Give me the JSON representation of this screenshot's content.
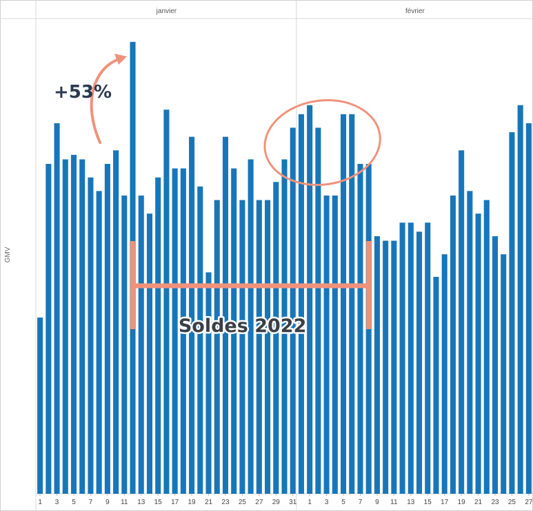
{
  "chart_data": {
    "type": "bar",
    "ylabel": "GMV",
    "months": [
      {
        "name": "janvier",
        "start_index": 0,
        "end_index": 30
      },
      {
        "name": "février",
        "start_index": 31,
        "end_index": 58
      }
    ],
    "categories": [
      1,
      2,
      3,
      4,
      5,
      6,
      7,
      8,
      9,
      10,
      11,
      12,
      13,
      14,
      15,
      16,
      17,
      18,
      19,
      20,
      21,
      22,
      23,
      24,
      25,
      26,
      27,
      28,
      29,
      30,
      31,
      1,
      2,
      3,
      4,
      5,
      6,
      7,
      8,
      9,
      10,
      11,
      12,
      13,
      14,
      15,
      16,
      17,
      18,
      19,
      20,
      21,
      22,
      23,
      24,
      25,
      26,
      27,
      28
    ],
    "tick_labels": [
      "1",
      "3",
      "5",
      "7",
      "9",
      "11",
      "13",
      "15",
      "17",
      "19",
      "21",
      "23",
      "25",
      "27",
      "29",
      "31",
      "1",
      "3",
      "5",
      "7",
      "9",
      "11",
      "13",
      "15",
      "17",
      "19",
      "21",
      "23",
      "25",
      "27"
    ],
    "values": [
      39,
      73,
      82,
      74,
      75,
      74,
      70,
      67,
      73,
      76,
      66,
      100,
      66,
      62,
      70,
      85,
      72,
      72,
      79,
      68,
      49,
      65,
      79,
      72,
      65,
      74,
      65,
      65,
      69,
      74,
      81,
      84,
      86,
      81,
      66,
      66,
      84,
      84,
      73,
      73,
      57,
      56,
      56,
      60,
      60,
      58,
      60,
      48,
      53,
      66,
      76,
      67,
      62,
      65,
      57,
      53,
      80,
      86,
      82
    ],
    "ylim": [
      0,
      105
    ],
    "color": "#1776ba",
    "annotations": {
      "growth_label": "+53%",
      "sale_label": "Soldes 2022",
      "annotation_color": "#f0927a",
      "sale_start_index": 11,
      "sale_end_index": 39,
      "circle_center_index": 34
    }
  }
}
